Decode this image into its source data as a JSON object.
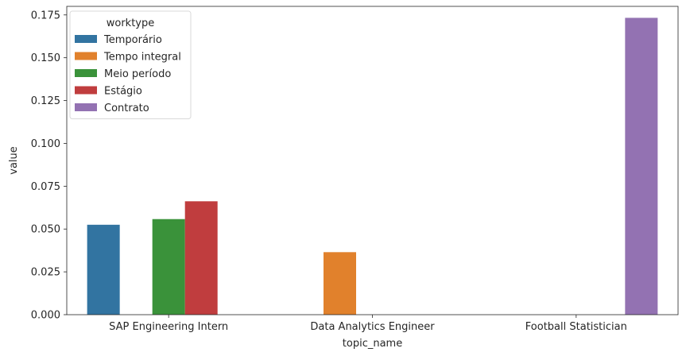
{
  "chart_data": {
    "type": "bar",
    "title": "",
    "xlabel": "topic_name",
    "ylabel": "value",
    "categories": [
      "SAP Engineering Intern",
      "Data Analytics Engineer",
      "Football Statistician"
    ],
    "ylim": [
      0,
      0.18
    ],
    "yticks": [
      "0.000",
      "0.025",
      "0.050",
      "0.075",
      "0.100",
      "0.125",
      "0.150",
      "0.175"
    ],
    "grid": false,
    "legend": {
      "title": "worktype",
      "placement": "top-left"
    },
    "series": [
      {
        "name": "Temporário",
        "color": "#3274a1",
        "values": [
          0.0525,
          null,
          null
        ]
      },
      {
        "name": "Tempo integral",
        "color": "#e1812c",
        "values": [
          null,
          0.0365,
          null
        ]
      },
      {
        "name": "Meio período",
        "color": "#3a923a",
        "values": [
          0.0558,
          null,
          null
        ]
      },
      {
        "name": "Estágio",
        "color": "#c03d3e",
        "values": [
          0.0662,
          null,
          null
        ]
      },
      {
        "name": "Contrato",
        "color": "#9372b2",
        "values": [
          null,
          null,
          0.1733
        ]
      }
    ]
  }
}
